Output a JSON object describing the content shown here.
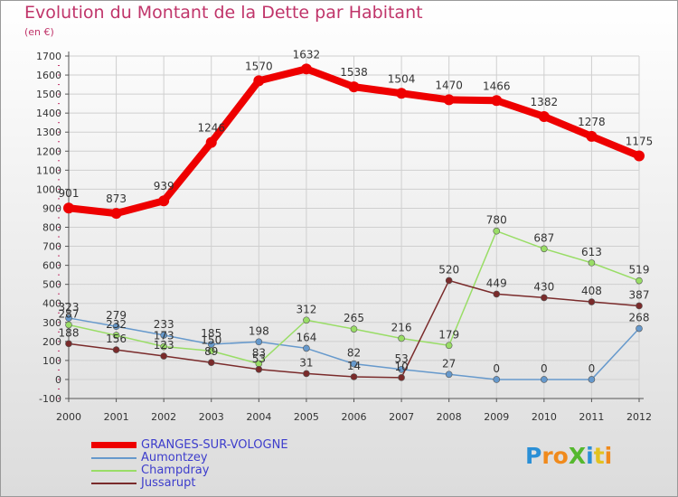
{
  "title": "Evolution du Montant de la Dette par Habitant",
  "subtitle": "(en €)",
  "logo_text": "ProXiti",
  "colors": {
    "title": "#c0356a",
    "axis": "#555555",
    "grid": "#cfcfcf"
  },
  "chart_data": {
    "type": "line",
    "x": [
      "2000",
      "2001",
      "2002",
      "2003",
      "2004",
      "2005",
      "2006",
      "2007",
      "2008",
      "2009",
      "2010",
      "2011",
      "2012"
    ],
    "ylim": [
      -100,
      1700
    ],
    "yticks": [
      "-100",
      "0",
      "100",
      "200",
      "300",
      "400",
      "500",
      "600",
      "700",
      "800",
      "900",
      "1000",
      "1100",
      "1200",
      "1300",
      "1400",
      "1500",
      "1600",
      "1700"
    ],
    "grid": true,
    "legend_position": "bottom-left",
    "series": [
      {
        "name": "GRANGES-SUR-VOLOGNE",
        "color": "#ee0000",
        "values": [
          901,
          873,
          939,
          1246,
          1570,
          1632,
          1538,
          1504,
          1470,
          1466,
          1382,
          1278,
          1175
        ],
        "labels": [
          "901",
          "873",
          "939",
          "1246",
          "1570",
          "1632",
          "1538",
          "1504",
          "1470",
          "1466",
          "1382",
          "1278",
          "1175"
        ]
      },
      {
        "name": "Aumontzey",
        "color": "#6699cc",
        "values": [
          323,
          279,
          233,
          185,
          198,
          164,
          82,
          53,
          27,
          0,
          0,
          0,
          268
        ],
        "labels": [
          "323",
          "279",
          "233",
          "185",
          "198",
          "164",
          "82",
          "53",
          "27",
          "0",
          "0",
          "0",
          "268"
        ]
      },
      {
        "name": "Champdray",
        "color": "#99dd66",
        "values": [
          287,
          232,
          173,
          150,
          83,
          312,
          265,
          216,
          179,
          780,
          687,
          613,
          519
        ],
        "labels": [
          "287",
          "232",
          "173",
          "150",
          "83",
          "312",
          "265",
          "216",
          "179",
          "780",
          "687",
          "613",
          "519"
        ]
      },
      {
        "name": "Jussarupt",
        "color": "#7a2b2b",
        "values": [
          188,
          156,
          123,
          89,
          53,
          31,
          14,
          10,
          520,
          449,
          430,
          408,
          387
        ],
        "labels": [
          "188",
          "156",
          "123",
          "89",
          "53",
          "31",
          "14",
          "10",
          "520",
          "449",
          "430",
          "408",
          "387"
        ]
      }
    ]
  }
}
